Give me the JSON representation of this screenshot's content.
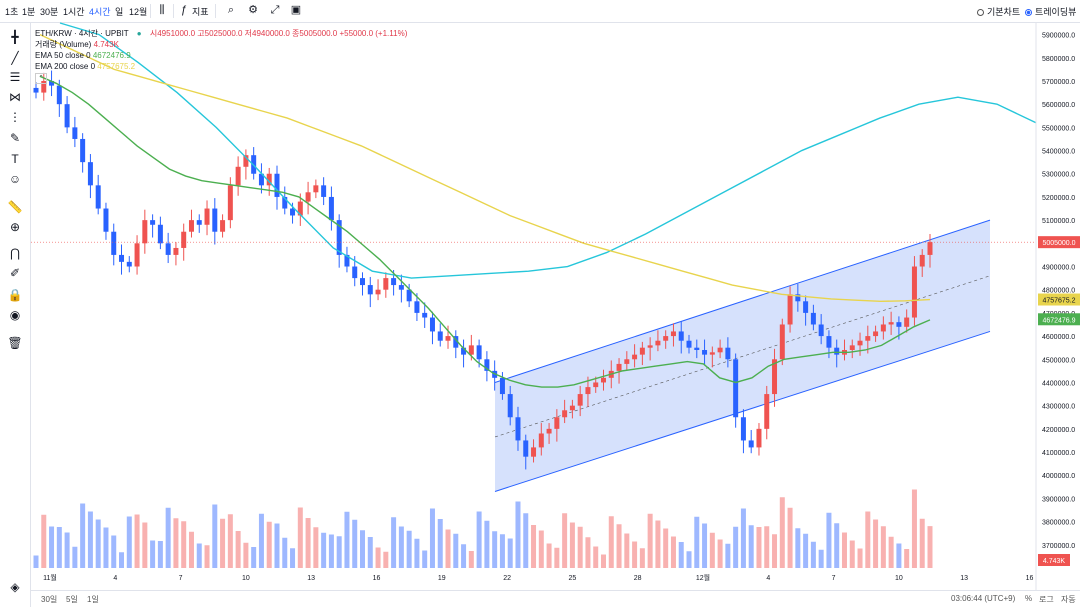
{
  "toolbar": {
    "intervals": [
      "1초",
      "1분",
      "30분",
      "1시간",
      "4시간",
      "일",
      "12월"
    ],
    "active_interval": "4시간",
    "indicators_label": "지표",
    "chart_types": [
      {
        "label": "기본차트",
        "selected": false
      },
      {
        "label": "트레이딩뷰",
        "selected": true
      }
    ]
  },
  "legend": {
    "title": "ETH/KRW · 4시간 · UPBIT",
    "ohlc": "시4951000.0 고5025000.0 저4940000.0 종5005000.0 +55000.0 (+1.11%)",
    "volume_label": "거래량 (Volume)",
    "volume_value": "4.743K",
    "ema50_label": "EMA 50 close 0",
    "ema50_value": "4672476.9",
    "ema200_label": "EMA 200 close 0",
    "ema200_value": "4757675.2",
    "collapse_btn": "⌃"
  },
  "bottom": {
    "ranges": [
      "30일",
      "5일",
      "1일"
    ],
    "time": "03:06:44 (UTC+9)",
    "options": [
      "%",
      "로그",
      "자동"
    ]
  },
  "colors": {
    "up": "#ef5350",
    "down": "#2962ff",
    "ema50": "#4caf50",
    "ema200": "#e8d44d",
    "ema_cyan": "#26c6da",
    "channel_fill": "#cfdcfb",
    "channel_line": "#2962ff"
  },
  "chart_data": {
    "type": "candlestick",
    "title": "ETH/KRW · 4시간 · UPBIT",
    "ylim": [
      3600000,
      5950000
    ],
    "y_ticks": [
      5900000,
      5800000,
      5700000,
      5600000,
      5500000,
      5400000,
      5300000,
      5200000,
      5100000,
      5000000,
      4900000,
      4800000,
      4700000,
      4600000,
      4500000,
      4400000,
      4300000,
      4200000,
      4100000,
      4000000,
      3900000,
      3800000,
      3700000
    ],
    "y_tick_labels": [
      "5900000.0",
      "5800000.0",
      "5700000.0",
      "5600000.0",
      "5500000.0",
      "5400000.0",
      "5300000.0",
      "5200000.0",
      "5100000.0",
      "5000000.0",
      "4900000.0",
      "4800000.0",
      "4700000.0",
      "4600000.0",
      "4500000.0",
      "4400000.0",
      "4300000.0",
      "4200000.0",
      "4100000.0",
      "4000000.0",
      "3900000.0",
      "3800000.0",
      "3700000.0"
    ],
    "x_ticks": [
      "11월",
      "4",
      "7",
      "10",
      "13",
      "16",
      "19",
      "22",
      "25",
      "28",
      "12월",
      "4",
      "7",
      "10",
      "13",
      "16"
    ],
    "price_badges": [
      {
        "label": "5005000.0",
        "value": 5005000,
        "color": "#ef5350"
      },
      {
        "label": "4757675.2",
        "value": 4757675,
        "color": "#e8d44d"
      },
      {
        "label": "4672476.9",
        "value": 4672477,
        "color": "#4caf50"
      }
    ],
    "volume_badge": "4.743K",
    "close_series": [
      5650000,
      5700000,
      5680000,
      5600000,
      5500000,
      5450000,
      5350000,
      5250000,
      5150000,
      5050000,
      4950000,
      4920000,
      4900000,
      5000000,
      5100000,
      5080000,
      5000000,
      4950000,
      4980000,
      5050000,
      5100000,
      5080000,
      5150000,
      5050000,
      5100000,
      5250000,
      5330000,
      5380000,
      5300000,
      5250000,
      5300000,
      5200000,
      5150000,
      5120000,
      5180000,
      5220000,
      5250000,
      5200000,
      5100000,
      4950000,
      4900000,
      4850000,
      4820000,
      4780000,
      4800000,
      4850000,
      4820000,
      4800000,
      4750000,
      4700000,
      4680000,
      4620000,
      4580000,
      4600000,
      4550000,
      4520000,
      4560000,
      4500000,
      4450000,
      4420000,
      4350000,
      4250000,
      4150000,
      4080000,
      4120000,
      4180000,
      4200000,
      4250000,
      4280000,
      4300000,
      4350000,
      4380000,
      4400000,
      4420000,
      4450000,
      4480000,
      4500000,
      4520000,
      4550000,
      4560000,
      4580000,
      4600000,
      4620000,
      4580000,
      4550000,
      4540000,
      4520000,
      4530000,
      4550000,
      4500000,
      4250000,
      4150000,
      4120000,
      4200000,
      4350000,
      4500000,
      4650000,
      4780000,
      4750000,
      4700000,
      4650000,
      4600000,
      4550000,
      4520000,
      4540000,
      4560000,
      4580000,
      4600000,
      4620000,
      4650000,
      4660000,
      4640000,
      4680000,
      4900000,
      4950000,
      5005000
    ],
    "ema50": [
      5720000,
      5690000,
      5650000,
      5600000,
      5540000,
      5480000,
      5420000,
      5370000,
      5320000,
      5290000,
      5270000,
      5260000,
      5250000,
      5240000,
      5230000,
      5220000,
      5200000,
      5150000,
      5100000,
      5050000,
      4990000,
      4930000,
      4860000,
      4790000,
      4720000,
      4640000,
      4560000,
      4490000,
      4440000,
      4410000,
      4390000,
      4380000,
      4380000,
      4390000,
      4410000,
      4430000,
      4450000,
      4460000,
      4470000,
      4480000,
      4490000,
      4480000,
      4420000,
      4400000,
      4420000,
      4470000,
      4500000,
      4510000,
      4520000,
      4530000,
      4530000,
      4540000,
      4560000,
      4600000,
      4640000,
      4670000
    ],
    "ema200": [
      5900000,
      5850000,
      5800000,
      5750000,
      5720000,
      5690000,
      5660000,
      5630000,
      5600000,
      5570000,
      5540000,
      5500000,
      5460000,
      5420000,
      5370000,
      5320000,
      5270000,
      5220000,
      5170000,
      5120000,
      5080000,
      5040000,
      5000000,
      4970000,
      4940000,
      4910000,
      4880000,
      4850000,
      4820000,
      4800000,
      4780000,
      4770000,
      4760000,
      4755000,
      4750000,
      4752000,
      4757675
    ],
    "ema_cyan": [
      6000000,
      5900000,
      5780000,
      5650000,
      5500000,
      5330000,
      5150000,
      4980000,
      4880000,
      4850000,
      4860000,
      4870000,
      4880000,
      4900000,
      4960000,
      5040000,
      5130000,
      5220000,
      5310000,
      5400000,
      5470000,
      5540000,
      5600000,
      5630000,
      5600000,
      5520000
    ],
    "channel": {
      "upper_start": 4400000,
      "upper_end": 5100000,
      "lower_start": 3930000,
      "lower_end": 4620000
    }
  }
}
